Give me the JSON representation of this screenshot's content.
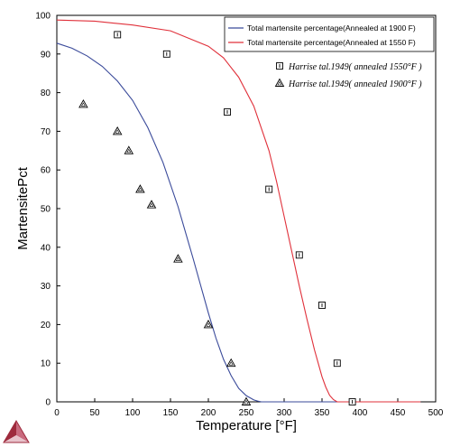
{
  "chart_data": {
    "type": "line",
    "title": "",
    "xlabel": "Temperature [°F]",
    "ylabel": "MartensitePct",
    "xlim": [
      0,
      500
    ],
    "ylim": [
      0,
      100
    ],
    "xticks": [
      0,
      50,
      100,
      150,
      200,
      250,
      300,
      350,
      400,
      450,
      500
    ],
    "yticks": [
      0,
      10,
      20,
      30,
      40,
      50,
      60,
      70,
      80,
      90,
      100
    ],
    "grid": false,
    "legend_placement": "top-right",
    "series": [
      {
        "name": "Total martensite percentage(Annealed at 1900 F)",
        "kind": "line",
        "color": "#3a4a9a",
        "x": [
          0,
          20,
          40,
          60,
          80,
          100,
          120,
          140,
          160,
          180,
          190,
          200,
          210,
          220,
          230,
          240,
          250,
          260,
          265,
          270,
          280,
          300,
          350,
          400,
          480
        ],
        "y": [
          92.8,
          91.5,
          89.5,
          86.8,
          83,
          78,
          71,
          62,
          50.5,
          37,
          30,
          23,
          16.5,
          11,
          6.8,
          3.5,
          1.6,
          0.5,
          0.2,
          0,
          0,
          0,
          0,
          0,
          0
        ]
      },
      {
        "name": "Total martensite percentage(Annealed at 1550 F)",
        "kind": "line",
        "color": "#e0303a",
        "x": [
          0,
          50,
          100,
          150,
          200,
          220,
          240,
          260,
          280,
          290,
          300,
          310,
          320,
          330,
          340,
          350,
          355,
          360,
          365,
          370,
          380,
          400,
          480
        ],
        "y": [
          98.8,
          98.5,
          97.5,
          96,
          92,
          89,
          84,
          76.5,
          65,
          57,
          48,
          39,
          30,
          21.5,
          13.5,
          6.5,
          3.8,
          1.7,
          0.6,
          0,
          0,
          0,
          0
        ]
      },
      {
        "name": "Harrise tal.1949( annealed 1550°F )",
        "kind": "scatter",
        "marker": "square",
        "color": "#000000",
        "x": [
          80,
          145,
          225,
          280,
          320,
          350,
          370,
          390
        ],
        "y": [
          95,
          90,
          75,
          55,
          38,
          25,
          10,
          0
        ]
      },
      {
        "name": "Harrise tal.1949( annealed 1900°F )",
        "kind": "scatter",
        "marker": "triangle",
        "color": "#000000",
        "x": [
          35,
          80,
          95,
          110,
          125,
          160,
          200,
          230,
          250
        ],
        "y": [
          77,
          70,
          65,
          55,
          51,
          37,
          20,
          10,
          0
        ]
      }
    ]
  },
  "logo": {
    "name": "thermo-calc-logo",
    "colors": [
      "#9e2a3c",
      "#c96a7e",
      "#e8c3cb"
    ]
  }
}
